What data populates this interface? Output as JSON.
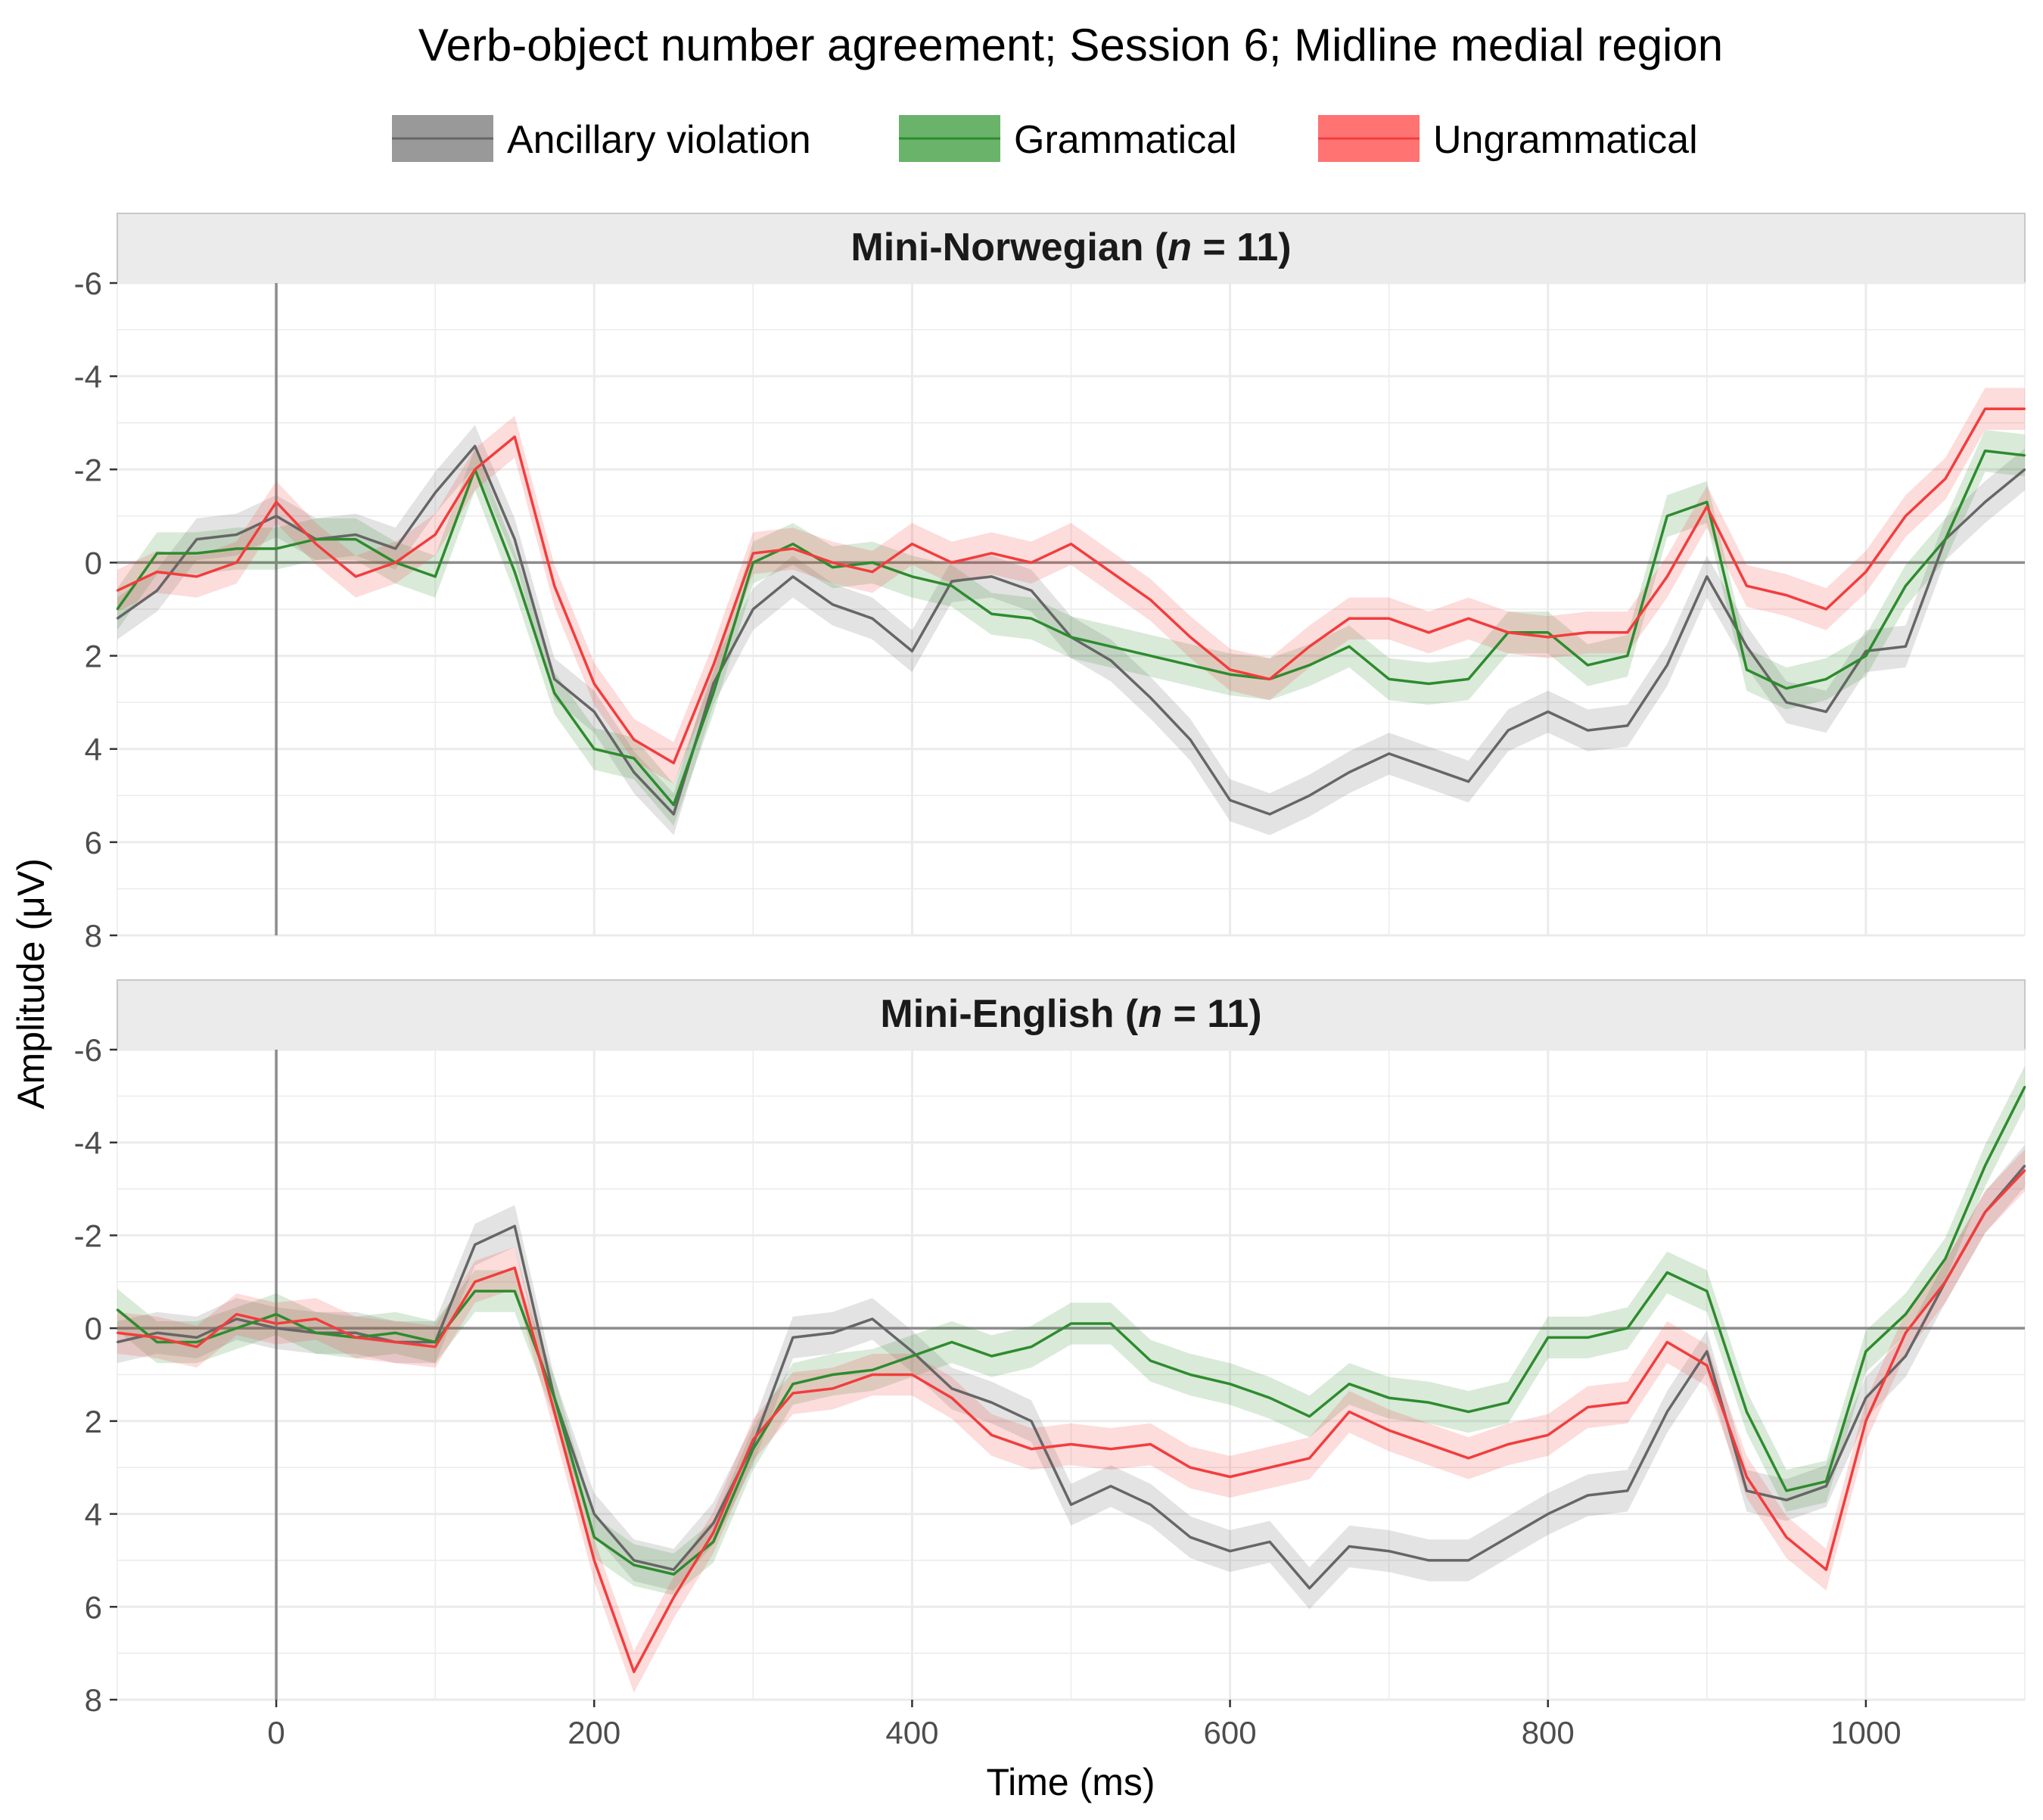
{
  "chart_data": {
    "type": "line",
    "title": "Verb-object number agreement; Session 6; Midline medial region",
    "xlabel": "Time (ms)",
    "ylabel": "Amplitude (μV)",
    "xlim": [
      -100,
      1100
    ],
    "ylim": [
      8,
      -6
    ],
    "y_reversed": true,
    "xticks": [
      0,
      200,
      400,
      600,
      800,
      1000
    ],
    "yticks": [
      -6,
      -4,
      -2,
      0,
      2,
      4,
      6,
      8
    ],
    "legend_position": "top",
    "grid": true,
    "series_names": [
      "Ancillary violation",
      "Grammatical",
      "Ungrammatical"
    ],
    "series_colors": {
      "Ancillary violation": "#666666",
      "Grammatical": "#2e8b2e",
      "Ungrammatical": "#f23d3d"
    },
    "panels": [
      {
        "title_main": "Mini-Norwegian (",
        "title_italic": "n",
        "title_rest": " = 11)",
        "x": [
          -100,
          -75,
          -50,
          -25,
          0,
          25,
          50,
          75,
          100,
          125,
          150,
          175,
          200,
          225,
          250,
          275,
          300,
          325,
          350,
          375,
          400,
          425,
          450,
          475,
          500,
          525,
          550,
          575,
          600,
          625,
          650,
          675,
          700,
          725,
          750,
          775,
          800,
          825,
          850,
          875,
          900,
          925,
          950,
          975,
          1000,
          1025,
          1050,
          1075,
          1100
        ],
        "series": [
          {
            "name": "Ancillary violation",
            "values": [
              1.2,
              0.6,
              -0.5,
              -0.6,
              -1.0,
              -0.5,
              -0.6,
              -0.3,
              -1.5,
              -2.5,
              -0.5,
              2.5,
              3.2,
              4.5,
              5.4,
              2.6,
              1.0,
              0.3,
              0.9,
              1.2,
              1.9,
              0.4,
              0.3,
              0.6,
              1.6,
              2.1,
              2.9,
              3.8,
              5.1,
              5.4,
              5.0,
              4.5,
              4.1,
              4.4,
              4.7,
              3.6,
              3.2,
              3.6,
              3.5,
              2.2,
              0.3,
              1.8,
              3.0,
              3.2,
              1.9,
              1.8,
              -0.5,
              -1.3,
              -2.0
            ]
          },
          {
            "name": "Grammatical",
            "values": [
              1.0,
              -0.2,
              -0.2,
              -0.3,
              -0.3,
              -0.5,
              -0.5,
              0.0,
              0.3,
              -2.0,
              0.2,
              2.8,
              4.0,
              4.2,
              5.2,
              2.8,
              0.0,
              -0.4,
              0.1,
              0.0,
              0.3,
              0.5,
              1.1,
              1.2,
              1.6,
              1.8,
              2.0,
              2.2,
              2.4,
              2.5,
              2.2,
              1.8,
              2.5,
              2.6,
              2.5,
              1.5,
              1.5,
              2.2,
              2.0,
              -1.0,
              -1.3,
              2.3,
              2.7,
              2.5,
              2.0,
              0.5,
              -0.5,
              -2.4,
              -2.3
            ]
          },
          {
            "name": "Ungrammatical",
            "values": [
              0.6,
              0.2,
              0.3,
              0.0,
              -1.3,
              -0.4,
              0.3,
              0.0,
              -0.6,
              -2.0,
              -2.7,
              0.5,
              2.6,
              3.8,
              4.3,
              2.2,
              -0.2,
              -0.3,
              0.0,
              0.2,
              -0.4,
              0.0,
              -0.2,
              0.0,
              -0.4,
              0.2,
              0.8,
              1.6,
              2.3,
              2.5,
              1.8,
              1.2,
              1.2,
              1.5,
              1.2,
              1.5,
              1.6,
              1.5,
              1.5,
              0.3,
              -1.2,
              0.5,
              0.7,
              1.0,
              0.2,
              -1.0,
              -1.8,
              -3.3,
              -3.3
            ]
          }
        ]
      },
      {
        "title_main": "Mini-English (",
        "title_italic": "n",
        "title_rest": " = 11)",
        "x": [
          -100,
          -75,
          -50,
          -25,
          0,
          25,
          50,
          75,
          100,
          125,
          150,
          175,
          200,
          225,
          250,
          275,
          300,
          325,
          350,
          375,
          400,
          425,
          450,
          475,
          500,
          525,
          550,
          575,
          600,
          625,
          650,
          675,
          700,
          725,
          750,
          775,
          800,
          825,
          850,
          875,
          900,
          925,
          950,
          975,
          1000,
          1025,
          1050,
          1075,
          1100
        ],
        "series": [
          {
            "name": "Ancillary violation",
            "values": [
              0.3,
              0.1,
              0.2,
              -0.2,
              0.0,
              0.1,
              0.1,
              0.3,
              0.3,
              -1.8,
              -2.2,
              1.5,
              4.0,
              5.0,
              5.2,
              4.2,
              2.5,
              0.2,
              0.1,
              -0.2,
              0.5,
              1.3,
              1.6,
              2.0,
              3.8,
              3.4,
              3.8,
              4.5,
              4.8,
              4.6,
              5.6,
              4.7,
              4.8,
              5.0,
              5.0,
              4.5,
              4.0,
              3.6,
              3.5,
              1.8,
              0.5,
              3.5,
              3.7,
              3.4,
              1.5,
              0.6,
              -1.0,
              -2.5,
              -3.5
            ]
          },
          {
            "name": "Grammatical",
            "values": [
              -0.4,
              0.3,
              0.3,
              0.0,
              -0.3,
              0.1,
              0.2,
              0.1,
              0.3,
              -0.8,
              -0.8,
              1.5,
              4.5,
              5.1,
              5.3,
              4.6,
              2.6,
              1.2,
              1.0,
              0.9,
              0.6,
              0.3,
              0.6,
              0.4,
              -0.1,
              -0.1,
              0.7,
              1.0,
              1.2,
              1.5,
              1.9,
              1.2,
              1.5,
              1.6,
              1.8,
              1.6,
              0.2,
              0.2,
              0.0,
              -1.2,
              -0.8,
              1.8,
              3.5,
              3.3,
              0.5,
              -0.3,
              -1.5,
              -3.5,
              -5.2
            ]
          },
          {
            "name": "Ungrammatical",
            "values": [
              0.1,
              0.2,
              0.4,
              -0.3,
              -0.1,
              -0.2,
              0.2,
              0.3,
              0.4,
              -1.0,
              -1.3,
              1.8,
              5.0,
              7.4,
              5.8,
              4.4,
              2.4,
              1.4,
              1.3,
              1.0,
              1.0,
              1.5,
              2.3,
              2.6,
              2.5,
              2.6,
              2.5,
              3.0,
              3.2,
              3.0,
              2.8,
              1.8,
              2.2,
              2.5,
              2.8,
              2.5,
              2.3,
              1.7,
              1.6,
              0.3,
              0.8,
              3.2,
              4.5,
              5.2,
              2.0,
              0.1,
              -1.0,
              -2.5,
              -3.4
            ]
          }
        ]
      }
    ]
  }
}
